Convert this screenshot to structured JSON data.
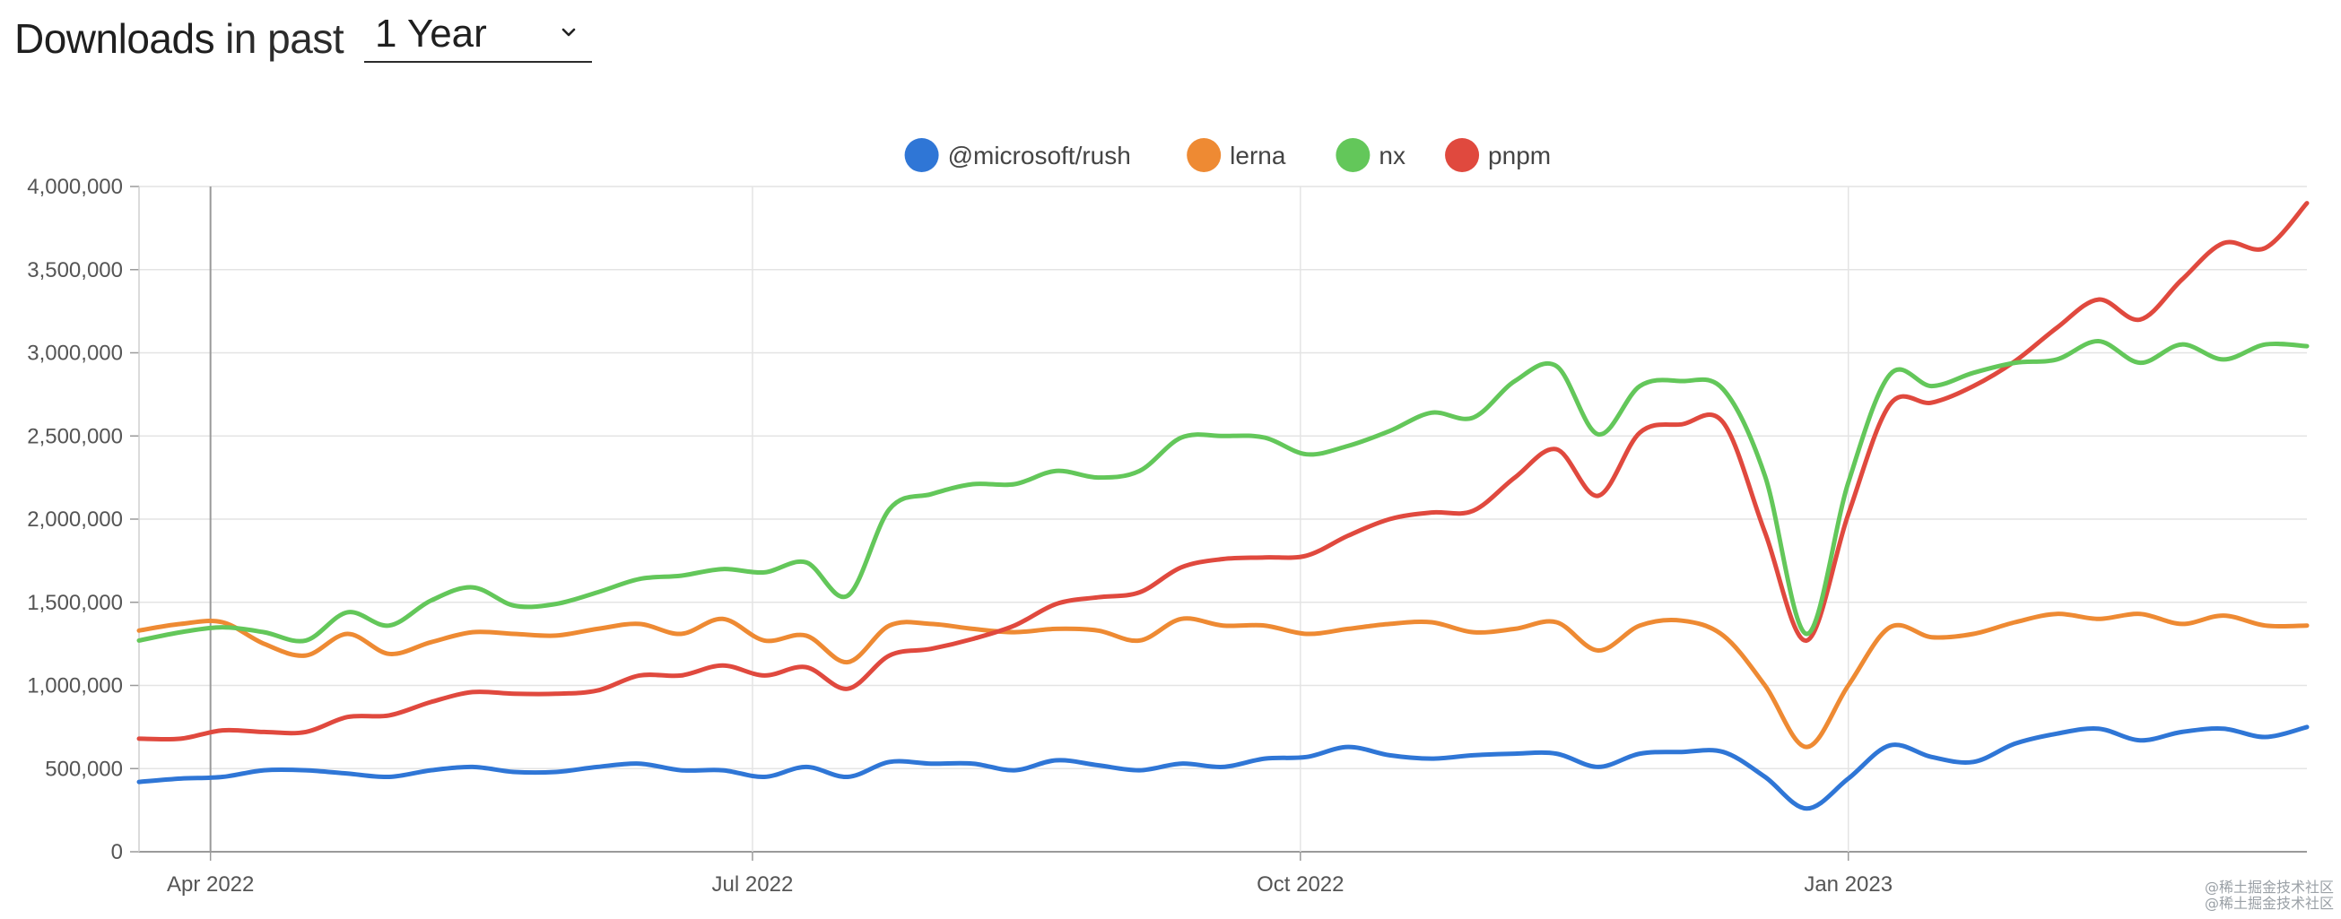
{
  "header": {
    "title": "Downloads",
    "subtitle": "in past",
    "period": "1 Year"
  },
  "watermark": {
    "line1": "@稀土掘金技术社区",
    "line2": "@稀土掘金技术社区"
  },
  "chart_data": {
    "type": "line",
    "title": "",
    "xlabel": "",
    "ylabel": "",
    "ylim": [
      0,
      4000000
    ],
    "ytick_values": [
      0,
      500000,
      1000000,
      1500000,
      2000000,
      2500000,
      3000000,
      3500000,
      4000000
    ],
    "ytick_labels": [
      "0",
      "500,000",
      "1,000,000",
      "1,500,000",
      "2,000,000",
      "2,500,000",
      "3,000,000",
      "3,500,000",
      "4,000,000"
    ],
    "xlim": [
      "2022-03-20",
      "2023-03-19"
    ],
    "xtick_dates": [
      "2022-04-01",
      "2022-07-01",
      "2022-10-01",
      "2023-01-01"
    ],
    "xtick_labels": [
      "Apr 2022",
      "Jul 2022",
      "Oct 2022",
      "Jan 2023"
    ],
    "grid": true,
    "legend_position": "top-center",
    "x": [
      "2022-03-20",
      "2022-03-27",
      "2022-04-03",
      "2022-04-10",
      "2022-04-17",
      "2022-04-24",
      "2022-05-01",
      "2022-05-08",
      "2022-05-15",
      "2022-05-22",
      "2022-05-29",
      "2022-06-05",
      "2022-06-12",
      "2022-06-19",
      "2022-06-26",
      "2022-07-03",
      "2022-07-10",
      "2022-07-17",
      "2022-07-24",
      "2022-07-31",
      "2022-08-07",
      "2022-08-14",
      "2022-08-21",
      "2022-08-28",
      "2022-09-04",
      "2022-09-11",
      "2022-09-18",
      "2022-09-25",
      "2022-10-02",
      "2022-10-09",
      "2022-10-16",
      "2022-10-23",
      "2022-10-30",
      "2022-11-06",
      "2022-11-13",
      "2022-11-20",
      "2022-11-27",
      "2022-12-04",
      "2022-12-11",
      "2022-12-18",
      "2022-12-25",
      "2023-01-01",
      "2023-01-08",
      "2023-01-15",
      "2023-01-22",
      "2023-01-29",
      "2023-02-05",
      "2023-02-12",
      "2023-02-19",
      "2023-02-26",
      "2023-03-05",
      "2023-03-12",
      "2023-03-19"
    ],
    "series": [
      {
        "name": "@microsoft/rush",
        "color": "#2f76d6",
        "values": [
          420000,
          440000,
          450000,
          490000,
          490000,
          470000,
          450000,
          490000,
          510000,
          480000,
          480000,
          510000,
          530000,
          490000,
          490000,
          450000,
          510000,
          450000,
          540000,
          530000,
          530000,
          490000,
          550000,
          520000,
          490000,
          530000,
          510000,
          560000,
          570000,
          630000,
          580000,
          560000,
          580000,
          590000,
          590000,
          510000,
          590000,
          600000,
          600000,
          450000,
          260000,
          440000,
          640000,
          570000,
          540000,
          650000,
          710000,
          740000,
          670000,
          720000,
          740000,
          690000,
          750000
        ]
      },
      {
        "name": "lerna",
        "color": "#ee8a33",
        "values": [
          1330000,
          1370000,
          1380000,
          1250000,
          1180000,
          1310000,
          1190000,
          1260000,
          1320000,
          1310000,
          1300000,
          1340000,
          1370000,
          1310000,
          1400000,
          1270000,
          1300000,
          1140000,
          1360000,
          1370000,
          1340000,
          1320000,
          1340000,
          1330000,
          1270000,
          1400000,
          1360000,
          1360000,
          1310000,
          1340000,
          1370000,
          1380000,
          1320000,
          1340000,
          1380000,
          1210000,
          1360000,
          1390000,
          1300000,
          1000000,
          630000,
          1000000,
          1350000,
          1290000,
          1310000,
          1380000,
          1430000,
          1400000,
          1430000,
          1370000,
          1420000,
          1360000,
          1360000
        ]
      },
      {
        "name": "nx",
        "color": "#63c75a",
        "values": [
          1270000,
          1320000,
          1350000,
          1320000,
          1270000,
          1440000,
          1360000,
          1510000,
          1590000,
          1480000,
          1490000,
          1560000,
          1640000,
          1660000,
          1700000,
          1680000,
          1740000,
          1540000,
          2060000,
          2150000,
          2210000,
          2210000,
          2290000,
          2250000,
          2290000,
          2490000,
          2500000,
          2490000,
          2390000,
          2440000,
          2530000,
          2640000,
          2610000,
          2830000,
          2920000,
          2510000,
          2800000,
          2830000,
          2780000,
          2260000,
          1310000,
          2220000,
          2870000,
          2800000,
          2880000,
          2940000,
          2960000,
          3070000,
          2940000,
          3050000,
          2960000,
          3050000,
          3040000
        ]
      },
      {
        "name": "pnpm",
        "color": "#e0493e",
        "values": [
          680000,
          680000,
          730000,
          720000,
          720000,
          810000,
          820000,
          900000,
          960000,
          950000,
          950000,
          970000,
          1060000,
          1060000,
          1120000,
          1060000,
          1110000,
          980000,
          1180000,
          1220000,
          1280000,
          1360000,
          1490000,
          1530000,
          1560000,
          1710000,
          1760000,
          1770000,
          1780000,
          1900000,
          2000000,
          2040000,
          2050000,
          2250000,
          2420000,
          2140000,
          2520000,
          2570000,
          2580000,
          1920000,
          1270000,
          2030000,
          2690000,
          2700000,
          2800000,
          2950000,
          3150000,
          3320000,
          3200000,
          3440000,
          3660000,
          3630000,
          3900000
        ]
      }
    ]
  }
}
